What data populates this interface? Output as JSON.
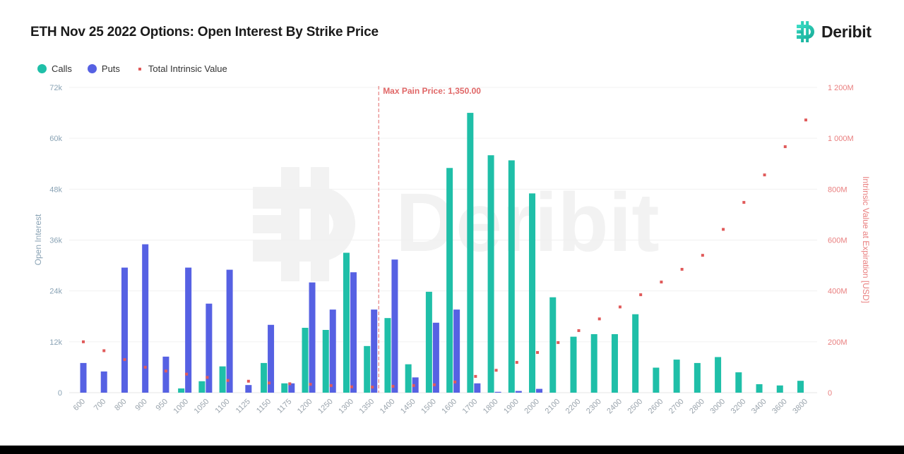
{
  "header": {
    "title": "ETH Nov 25 2022 Options: Open Interest By Strike Price",
    "brand": "Deribit",
    "brand_icon": "deribit-logo-icon"
  },
  "legend": [
    {
      "label": "Calls",
      "color": "#1fbfa8",
      "shape": "circle"
    },
    {
      "label": "Puts",
      "color": "#5661e3",
      "shape": "circle"
    },
    {
      "label": "Total Intrinsic Value",
      "color": "#e05a5a",
      "shape": "square"
    }
  ],
  "annotation": {
    "label": "Max Pain Price: 1,350.00",
    "strike": "1350",
    "color": "#e06767"
  },
  "watermark": "Deribit",
  "colors": {
    "calls": "#1fbfa8",
    "puts": "#5661e3",
    "intrinsic": "#e05a5a",
    "left_axis": "#8aa3b5",
    "right_axis": "#e97f7f",
    "grid": "#f0f0f0"
  },
  "chart_data": {
    "type": "bar",
    "title": "ETH Nov 25 2022 Options: Open Interest By Strike Price",
    "xlabel": "",
    "ylabel": "Open Interest",
    "y2label": "Intrinsic Value at Expiration [USD]",
    "ylim": [
      0,
      72000
    ],
    "y2lim": [
      0,
      1200000000
    ],
    "yticks": [
      "0",
      "12k",
      "24k",
      "36k",
      "48k",
      "60k",
      "72k"
    ],
    "y2ticks": [
      "0",
      "200M",
      "400M",
      "600M",
      "800M",
      "1 000M",
      "1 200M"
    ],
    "grid": true,
    "legend_position": "top-left",
    "categories": [
      "600",
      "700",
      "800",
      "900",
      "950",
      "1000",
      "1050",
      "1100",
      "1125",
      "1150",
      "1175",
      "1200",
      "1250",
      "1300",
      "1350",
      "1400",
      "1450",
      "1500",
      "1600",
      "1700",
      "1800",
      "1900",
      "2000",
      "2100",
      "2200",
      "2300",
      "2400",
      "2500",
      "2600",
      "2700",
      "2800",
      "3000",
      "3200",
      "3400",
      "3600",
      "3800"
    ],
    "series": [
      {
        "name": "Calls",
        "type": "bar",
        "axis": "left",
        "values": [
          0,
          0,
          0,
          0,
          0,
          1000,
          2700,
          6200,
          0,
          7000,
          2200,
          15300,
          14800,
          33000,
          11000,
          17600,
          6700,
          23800,
          53000,
          66000,
          56000,
          54800,
          47000,
          22500,
          13200,
          13800,
          13800,
          18500,
          5900,
          7800,
          7000,
          8400,
          4800,
          2000,
          1700,
          2800
        ]
      },
      {
        "name": "Puts",
        "type": "bar",
        "axis": "left",
        "values": [
          7000,
          5000,
          29500,
          35000,
          8500,
          29500,
          21000,
          29000,
          1800,
          16000,
          2200,
          26000,
          19600,
          28400,
          19600,
          31400,
          3600,
          16500,
          19600,
          2200,
          200,
          400,
          900,
          0,
          0,
          0,
          0,
          0,
          0,
          0,
          0,
          0,
          0,
          0,
          0,
          0
        ]
      },
      {
        "name": "Total Intrinsic Value",
        "type": "scatter",
        "axis": "right",
        "unit": "M USD",
        "values": [
          200,
          165,
          130,
          100,
          85,
          73,
          60,
          48,
          45,
          38,
          35,
          33,
          28,
          23,
          22,
          25,
          28,
          31,
          42,
          64,
          88,
          119,
          158,
          197,
          244,
          290,
          337,
          385,
          435,
          485,
          540,
          642,
          748,
          856,
          967,
          1072
        ]
      }
    ]
  }
}
